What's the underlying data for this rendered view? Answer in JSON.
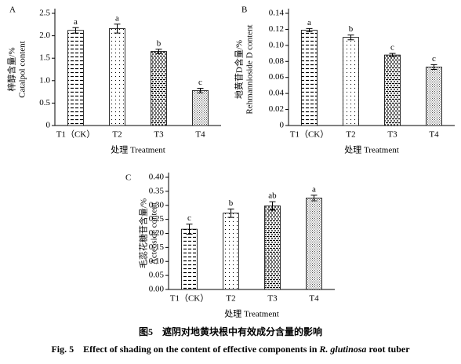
{
  "chart_data": [
    {
      "type": "bar",
      "panel": "A",
      "ylabel": [
        "梓醇含量/%",
        "Catalpol content"
      ],
      "xlabel": "处理 Treatment",
      "categories": [
        "T1（CK）",
        "T2",
        "T3",
        "T4"
      ],
      "values": [
        2.12,
        2.16,
        1.65,
        0.78
      ],
      "errors": [
        0.06,
        0.1,
        0.05,
        0.05
      ],
      "letters": [
        "a",
        "a",
        "b",
        "c"
      ],
      "color": "#000000",
      "ylim": [
        0,
        2.5
      ],
      "yticks": [
        0,
        0.5,
        {
          "value": 1,
          "label": "1.0"
        },
        1.5,
        {
          "value": 2,
          "label": "2.0"
        },
        2.5
      ]
    },
    {
      "type": "bar",
      "panel": "B",
      "ylabel": [
        "地黄苷D含量/%",
        "Rehmannioside D content"
      ],
      "xlabel": "处理 Treatment",
      "categories": [
        "T1（CK）",
        "T2",
        "T3",
        "T4"
      ],
      "values": [
        0.119,
        0.11,
        0.088,
        0.073
      ],
      "errors": [
        0.002,
        0.003,
        0.002,
        0.003
      ],
      "letters": [
        "a",
        "b",
        "c",
        "c"
      ],
      "color": "#000000",
      "ylim": [
        0,
        0.14
      ],
      "yticks": [
        0,
        0.02,
        0.04,
        0.06,
        0.08,
        {
          "value": 0.1,
          "label": "0.10"
        },
        0.12,
        0.14
      ]
    },
    {
      "type": "bar",
      "panel": "C",
      "ylabel": [
        "毛蕊花糖苷含量/%",
        "Acteoside content"
      ],
      "xlabel": "处理 Treatment",
      "categories": [
        "T1（CK）",
        "T2",
        "T3",
        "T4"
      ],
      "values": [
        0.215,
        0.272,
        0.298,
        0.326
      ],
      "errors": [
        0.018,
        0.015,
        0.015,
        0.01
      ],
      "letters": [
        "c",
        "b",
        "ab",
        "a"
      ],
      "color": "#000000",
      "ylim": [
        0,
        0.4
      ],
      "yticks": [
        {
          "value": 0,
          "label": "0.00"
        },
        0.05,
        {
          "value": 0.1,
          "label": "0.10"
        },
        0.15,
        {
          "value": 0.2,
          "label": "0.20"
        },
        0.25,
        {
          "value": 0.3,
          "label": "0.30"
        },
        0.35,
        {
          "value": 0.4,
          "label": "0.40"
        }
      ]
    }
  ],
  "caption_cn": "图5　遮阴对地黄块根中有效成分含量的影响",
  "caption_en": [
    "Fig. 5　Effect of shading on the content of effective components in ",
    "R. glutinosa",
    " root tuber"
  ]
}
